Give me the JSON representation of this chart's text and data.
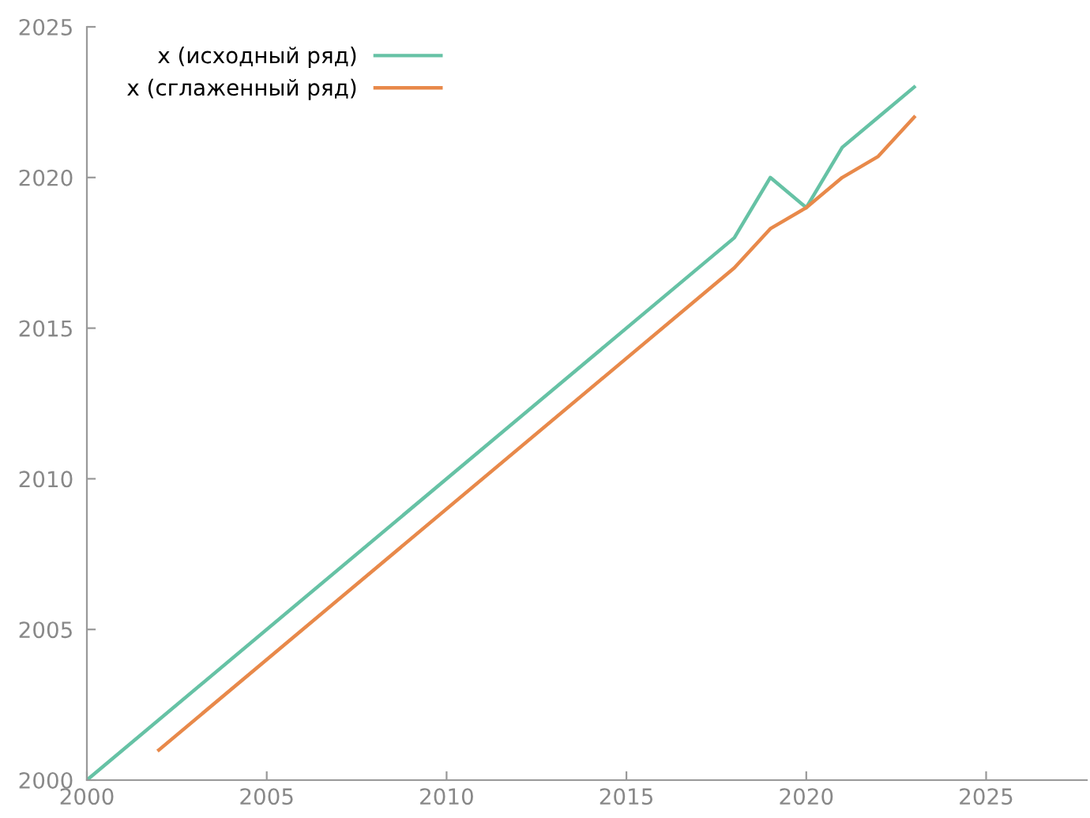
{
  "chart_data": {
    "type": "line",
    "x": [
      2000,
      2018,
      2019,
      2020,
      2021,
      2022,
      2023
    ],
    "series": [
      {
        "name": "x (исходный ряд)",
        "color": "#66c2a5",
        "values": [
          2000,
          2018,
          2020,
          2019,
          2021,
          2022,
          2023
        ]
      },
      {
        "name": "x (сглаженный ряд)",
        "color": "#e8894a",
        "x": [
          2002,
          2018,
          2019,
          2020,
          2021,
          2022,
          2023
        ],
        "values": [
          2001,
          2017,
          2018.3,
          2019,
          2020,
          2020.7,
          2022
        ]
      }
    ],
    "xlim": [
      2000,
      2027.8
    ],
    "xticks": [
      2000,
      2005,
      2010,
      2015,
      2020,
      2025
    ],
    "ylim": [
      2000,
      2025
    ],
    "yticks": [
      2000,
      2005,
      2010,
      2015,
      2020,
      2025
    ],
    "grid": false,
    "legend": "top left",
    "line_style": "solid",
    "marker": "none"
  }
}
